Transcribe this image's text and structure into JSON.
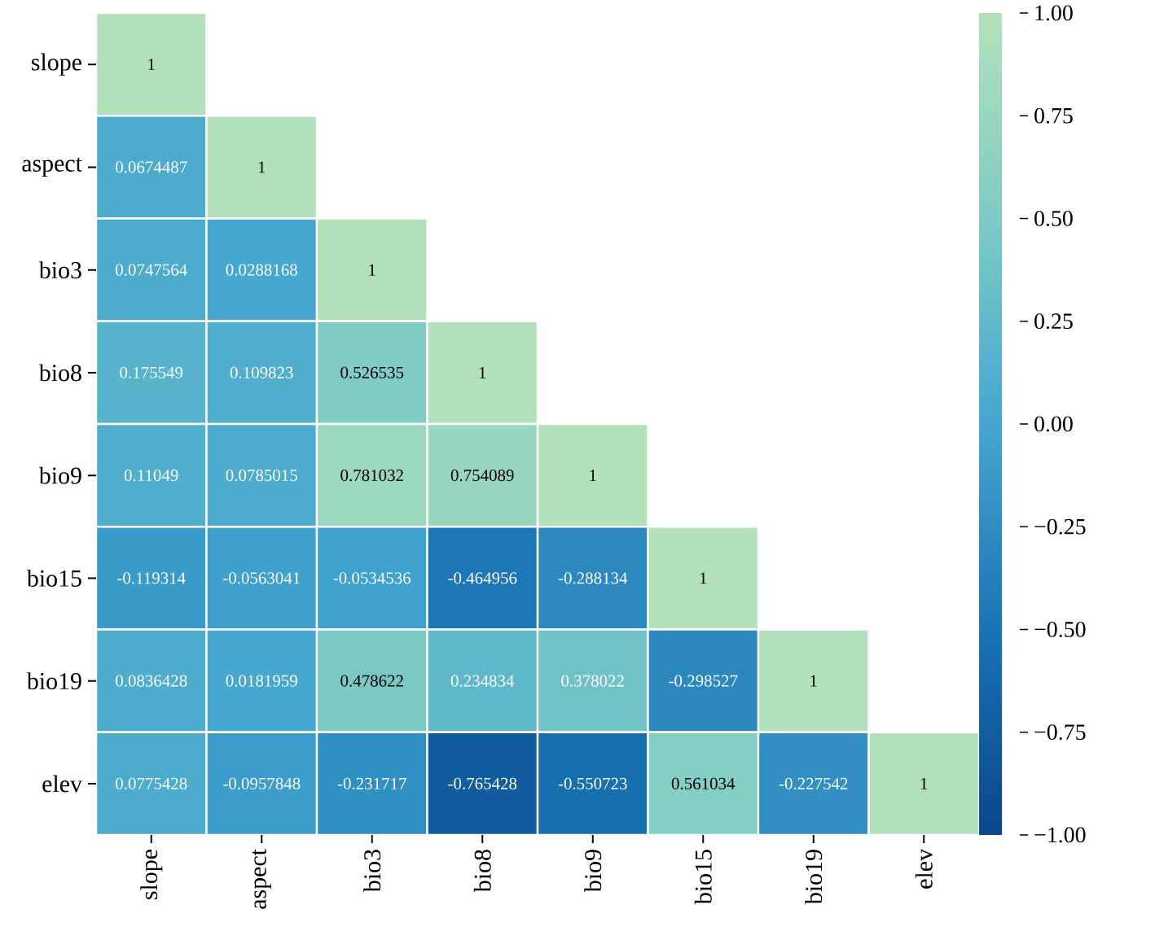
{
  "chart_data": {
    "type": "heatmap",
    "categories": [
      "slope",
      "aspect",
      "bio3",
      "bio8",
      "bio9",
      "bio15",
      "bio19",
      "elev"
    ],
    "y_categories": [
      "slope",
      "aspect",
      "bio3",
      "bio8",
      "bio9",
      "bio15",
      "bio19",
      "elev"
    ],
    "cells": [
      [
        1,
        null,
        null,
        null,
        null,
        null,
        null,
        null
      ],
      [
        0.0674487,
        1,
        null,
        null,
        null,
        null,
        null,
        null
      ],
      [
        0.0747564,
        0.0288168,
        1,
        null,
        null,
        null,
        null,
        null
      ],
      [
        0.175549,
        0.109823,
        0.526535,
        1,
        null,
        null,
        null,
        null
      ],
      [
        0.11049,
        0.0785015,
        0.781032,
        0.754089,
        1,
        null,
        null,
        null
      ],
      [
        -0.119314,
        -0.0563041,
        -0.0534536,
        -0.464956,
        -0.288134,
        1,
        null,
        null
      ],
      [
        0.0836428,
        0.0181959,
        0.478622,
        0.234834,
        0.378022,
        -0.298527,
        1,
        null
      ],
      [
        0.0775428,
        -0.0957848,
        -0.231717,
        -0.765428,
        -0.550723,
        0.561034,
        -0.227542,
        1
      ]
    ],
    "data_labels": true,
    "clim": [
      -1,
      1
    ],
    "cticks": [
      {
        "value": -1,
        "label": "−1.00"
      },
      {
        "value": -0.75,
        "label": "−0.75"
      },
      {
        "value": -0.5,
        "label": "−0.50"
      },
      {
        "value": -0.25,
        "label": "−0.25"
      },
      {
        "value": 0,
        "label": "0.00"
      },
      {
        "value": 0.25,
        "label": "0.25"
      },
      {
        "value": 0.5,
        "label": "0.50"
      },
      {
        "value": 0.75,
        "label": "0.75"
      },
      {
        "value": 1,
        "label": "1.00"
      }
    ]
  }
}
